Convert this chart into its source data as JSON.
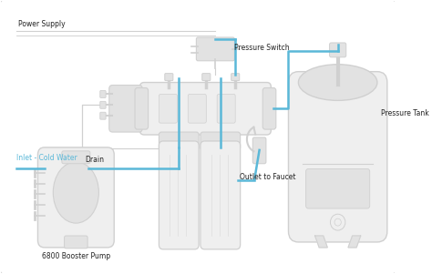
{
  "bg_color": "#ffffff",
  "gray": "#aaaaaa",
  "gray_light": "#d0d0d0",
  "gray_fill": "#efefef",
  "gray_fill2": "#e2e2e2",
  "blue": "#5ab8d8",
  "dark": "#555555",
  "text_color": "#222222",
  "labels": {
    "power_supply": "Power Supply",
    "pressure_switch": "Pressure Switch",
    "drain": "Drain",
    "inlet": "Inlet - Cold Water",
    "outlet": "Outlet to Faucet",
    "booster_pump": "6800 Booster Pump",
    "pressure_tank": "Pressure Tank"
  }
}
